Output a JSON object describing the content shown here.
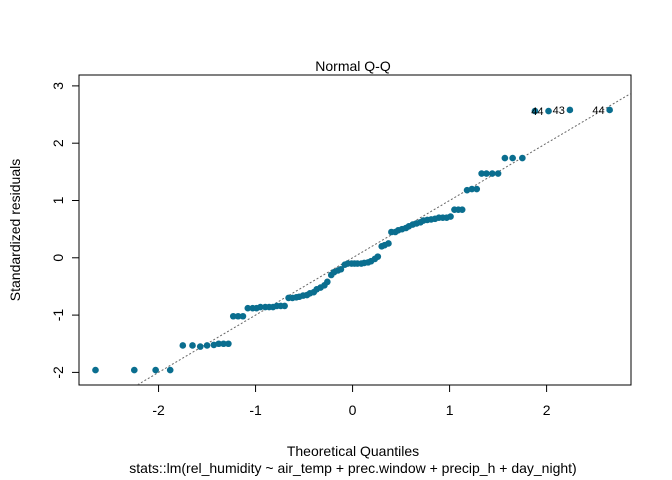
{
  "chart_data": {
    "type": "scatter",
    "title": "Normal Q-Q",
    "xlabel": "Theoretical Quantiles",
    "ylabel": "Standardized residuals",
    "subtitle": "stats::lm(rel_humidity ~ air_temp + prec.window + precip_h + day_night)",
    "color": "#0a6e8f",
    "x": [
      -2.65,
      -2.25,
      -2.03,
      -1.88,
      -1.75,
      -1.65,
      -1.57,
      -1.5,
      -1.43,
      -1.38,
      -1.33,
      -1.28,
      -1.23,
      -1.18,
      -1.13,
      -1.08,
      -1.03,
      -0.99,
      -0.95,
      -0.9,
      -0.86,
      -0.82,
      -0.78,
      -0.74,
      -0.7,
      -0.66,
      -0.62,
      -0.58,
      -0.55,
      -0.51,
      -0.47,
      -0.44,
      -0.4,
      -0.37,
      -0.33,
      -0.29,
      -0.26,
      -0.22,
      -0.19,
      -0.15,
      -0.12,
      -0.08,
      -0.05,
      -0.01,
      0.02,
      0.05,
      0.09,
      0.12,
      0.16,
      0.19,
      0.23,
      0.26,
      0.3,
      0.33,
      0.37,
      0.4,
      0.44,
      0.47,
      0.51,
      0.55,
      0.58,
      0.62,
      0.66,
      0.7,
      0.73,
      0.77,
      0.81,
      0.85,
      0.89,
      0.93,
      0.97,
      1.01,
      1.05,
      1.09,
      1.13,
      1.18,
      1.23,
      1.28,
      1.33,
      1.38,
      1.44,
      1.5,
      1.57,
      1.65,
      1.75,
      1.88,
      2.02,
      2.24,
      2.65
    ],
    "values": [
      -1.96,
      -1.96,
      -1.96,
      -1.96,
      -1.53,
      -1.53,
      -1.55,
      -1.53,
      -1.52,
      -1.5,
      -1.5,
      -1.5,
      -1.02,
      -1.02,
      -1.02,
      -0.88,
      -0.88,
      -0.88,
      -0.86,
      -0.86,
      -0.86,
      -0.86,
      -0.84,
      -0.84,
      -0.84,
      -0.7,
      -0.7,
      -0.69,
      -0.68,
      -0.66,
      -0.65,
      -0.62,
      -0.6,
      -0.55,
      -0.52,
      -0.48,
      -0.42,
      -0.3,
      -0.25,
      -0.22,
      -0.2,
      -0.12,
      -0.1,
      -0.1,
      -0.1,
      -0.1,
      -0.1,
      -0.09,
      -0.08,
      -0.06,
      -0.02,
      0.02,
      0.2,
      0.22,
      0.25,
      0.45,
      0.45,
      0.48,
      0.5,
      0.52,
      0.55,
      0.58,
      0.6,
      0.62,
      0.65,
      0.66,
      0.67,
      0.68,
      0.7,
      0.7,
      0.7,
      0.72,
      0.84,
      0.84,
      0.84,
      1.18,
      1.2,
      1.2,
      1.47,
      1.47,
      1.47,
      1.47,
      1.74,
      1.74,
      1.74,
      2.56,
      2.56,
      2.58,
      2.58
    ],
    "point_labels": [
      {
        "index": 86,
        "label": "44"
      },
      {
        "index": 87,
        "label": "43"
      },
      {
        "index": 88,
        "label": "44"
      }
    ],
    "reference_line": {
      "intercept": 0,
      "slope": 1
    },
    "xlim": [
      -2.82,
      2.87
    ],
    "ylim": [
      -2.22,
      3.19
    ],
    "xticks": [
      -2,
      -1,
      0,
      1,
      2
    ],
    "yticks": [
      -2,
      -1,
      0,
      1,
      2,
      3
    ]
  }
}
